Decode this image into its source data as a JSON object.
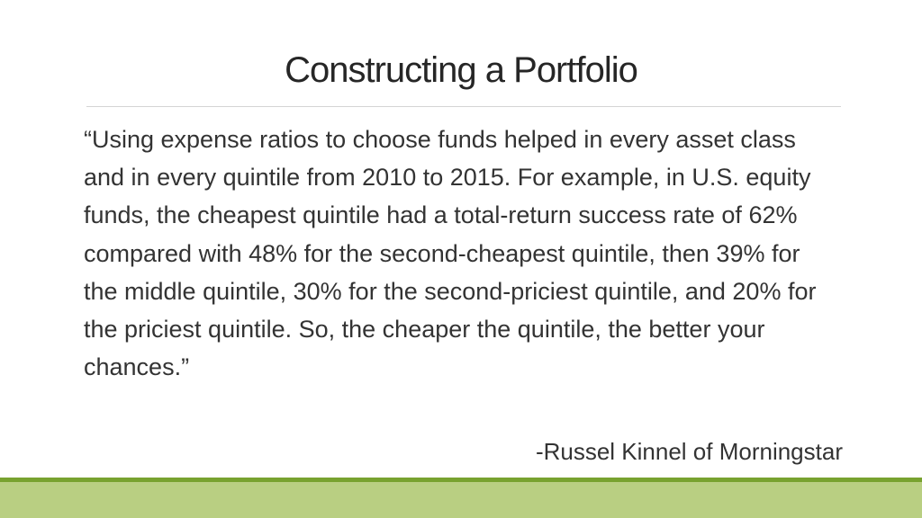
{
  "slide": {
    "title": "Constructing a Portfolio",
    "quote": "“Using expense ratios to choose funds helped in every asset class and in every quintile from 2010 to 2015. For example, in U.S. equity funds, the cheapest quintile had a total-return success rate of 62% compared with 48% for the second-cheapest quintile, then 39% for the middle quintile, 30% for the second-priciest quintile, and 20% for the priciest quintile. So, the cheaper the quintile, the better your chances.”",
    "attribution": "-Russel Kinnel of Morningstar"
  },
  "colors": {
    "footer_line": "#78a22f",
    "footer_band": "#b9cf82",
    "title_text": "#262626",
    "body_text": "#333333",
    "rule": "#d4d4d4"
  }
}
